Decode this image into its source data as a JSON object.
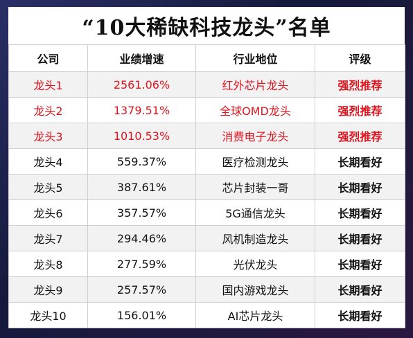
{
  "title": "“10大稀缺科技龙头”名单",
  "headers": [
    "公司",
    "业绩增速",
    "行业地位",
    "评级"
  ],
  "rows": [
    {
      "company": "龙头1",
      "growth": "2561.06%",
      "position": "红外芯片龙头",
      "rating": "强烈推荐"
    },
    {
      "company": "龙头2",
      "growth": "1379.51%",
      "position": "全球OMD龙头",
      "rating": "强烈推荐"
    },
    {
      "company": "龙头3",
      "growth": "1010.53%",
      "position": "消费电子龙头",
      "rating": "强烈推荐"
    },
    {
      "company": "龙头4",
      "growth": "559.37%",
      "position": "医疗检测龙头",
      "rating": "长期看好"
    },
    {
      "company": "龙头5",
      "growth": "387.61%",
      "position": "芯片封装一哥",
      "rating": "长期看好"
    },
    {
      "company": "龙头6",
      "growth": "357.57%",
      "position": "5G通信龙头",
      "rating": "长期看好"
    },
    {
      "company": "龙头7",
      "growth": "294.46%",
      "position": "风机制造龙头",
      "rating": "长期看好"
    },
    {
      "company": "龙头8",
      "growth": "277.59%",
      "position": "光伏龙头",
      "rating": "长期看好"
    },
    {
      "company": "龙头9",
      "growth": "257.57%",
      "position": "国内游戏龙头",
      "rating": "长期看好"
    },
    {
      "company": "龙头10",
      "growth": "156.01%",
      "position": "AI芯片龙头",
      "rating": "长期看好"
    }
  ],
  "colors": {
    "highlight": "#e0141e",
    "text": "#111111",
    "frame": "#1c2248"
  }
}
